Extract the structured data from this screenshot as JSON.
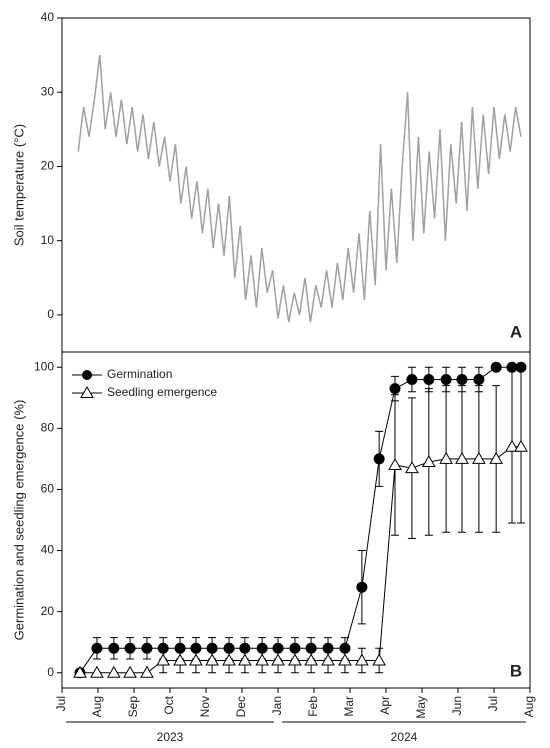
{
  "chart_data": [
    {
      "type": "line",
      "ylabel": "Soil temperature (°C)",
      "panel_label": "A",
      "color": "#a0a0a0",
      "xlim": [
        0,
        13
      ],
      "ylim": [
        -5,
        40
      ],
      "yticks": [
        0,
        10,
        20,
        30,
        40
      ],
      "x": [
        0.45,
        0.6,
        0.75,
        0.9,
        1.05,
        1.2,
        1.35,
        1.5,
        1.65,
        1.8,
        1.95,
        2.1,
        2.25,
        2.4,
        2.55,
        2.7,
        2.85,
        3.0,
        3.15,
        3.3,
        3.45,
        3.6,
        3.75,
        3.9,
        4.05,
        4.2,
        4.35,
        4.5,
        4.65,
        4.8,
        4.95,
        5.1,
        5.25,
        5.4,
        5.55,
        5.7,
        5.85,
        6.0,
        6.15,
        6.3,
        6.45,
        6.6,
        6.75,
        6.9,
        7.05,
        7.2,
        7.35,
        7.5,
        7.65,
        7.8,
        7.95,
        8.1,
        8.25,
        8.4,
        8.55,
        8.7,
        8.85,
        9.0,
        9.15,
        9.3,
        9.45,
        9.6,
        9.75,
        9.9,
        10.05,
        10.2,
        10.35,
        10.5,
        10.65,
        10.8,
        10.95,
        11.1,
        11.25,
        11.4,
        11.55,
        11.7,
        11.85,
        12.0,
        12.15,
        12.3,
        12.45,
        12.6,
        12.75
      ],
      "values": [
        22,
        28,
        24,
        29,
        35,
        25,
        30,
        24,
        29,
        23,
        28,
        22,
        27,
        21,
        26,
        20,
        24,
        18,
        23,
        15,
        20,
        13,
        18,
        11,
        17,
        9,
        15,
        8,
        16,
        5,
        12,
        2,
        8,
        1,
        9,
        3,
        6,
        -0.5,
        4,
        -1,
        3,
        0,
        5,
        -1,
        4,
        1,
        6,
        1,
        7,
        2,
        9,
        3,
        11,
        2,
        14,
        4,
        23,
        6,
        17,
        7,
        20,
        30,
        10,
        24,
        11,
        22,
        13,
        25,
        10,
        23,
        15,
        26,
        14,
        28,
        17,
        27,
        19,
        28,
        21,
        27,
        22,
        28,
        24
      ]
    },
    {
      "type": "errorbar",
      "ylabel": "Germination and seedling emergence (%)",
      "panel_label": "B",
      "legend": "upper left",
      "xlim": [
        0,
        13
      ],
      "ylim": [
        -5,
        105
      ],
      "yticks": [
        0,
        20,
        40,
        60,
        80,
        100
      ],
      "xticks": [
        {
          "value": 0,
          "label": "Jul"
        },
        {
          "value": 1,
          "label": "Aug"
        },
        {
          "value": 2,
          "label": "Sep"
        },
        {
          "value": 3,
          "label": "Oct"
        },
        {
          "value": 4,
          "label": "Nov"
        },
        {
          "value": 5,
          "label": "Dec"
        },
        {
          "value": 6,
          "label": "Jan"
        },
        {
          "value": 7,
          "label": "Feb"
        },
        {
          "value": 8,
          "label": "Mar"
        },
        {
          "value": 9,
          "label": "Apr"
        },
        {
          "value": 10,
          "label": "May"
        },
        {
          "value": 11,
          "label": "Jun"
        },
        {
          "value": 12,
          "label": "Jul"
        },
        {
          "value": 13,
          "label": "Aug"
        }
      ],
      "year_labels": [
        {
          "label": "2023",
          "span": [
            0,
            6
          ]
        },
        {
          "label": "2024",
          "span": [
            6,
            13
          ]
        }
      ],
      "x": [
        0.5,
        0.97,
        1.44,
        1.89,
        2.36,
        2.81,
        3.28,
        3.72,
        4.17,
        4.64,
        5.08,
        5.56,
        6.0,
        6.47,
        6.92,
        7.39,
        7.86,
        8.33,
        8.81,
        9.25,
        9.72,
        10.19,
        10.67,
        11.11,
        11.58,
        12.06,
        12.5,
        12.75
      ],
      "series": [
        {
          "name": "Germination",
          "marker": "circle",
          "color": "#000000",
          "values": [
            0,
            8,
            8,
            8,
            8,
            8,
            8,
            8,
            8,
            8,
            8,
            8,
            8,
            8,
            8,
            8,
            8,
            28,
            70,
            93,
            96,
            96,
            96,
            96,
            96,
            100,
            100,
            100
          ],
          "errors": [
            0,
            3.5,
            3.5,
            3.5,
            3.5,
            3.5,
            3.5,
            3.5,
            3.5,
            3.5,
            3.5,
            3.5,
            3.5,
            3.5,
            3.5,
            3.5,
            3.5,
            12,
            9,
            4,
            4,
            4,
            4,
            4,
            4,
            0,
            0,
            0
          ]
        },
        {
          "name": "Seedling emergence",
          "marker": "triangle",
          "color": "#000000",
          "values": [
            0,
            0,
            0,
            0,
            0,
            4,
            4,
            4,
            4,
            4,
            4,
            4,
            4,
            4,
            4,
            4,
            4,
            4,
            4,
            68,
            67,
            69,
            70,
            70,
            70,
            70,
            74,
            74
          ],
          "errors": [
            0,
            0,
            0,
            0,
            0,
            4,
            4,
            4,
            4,
            4,
            4,
            4,
            4,
            4,
            4,
            4,
            4,
            4,
            4,
            23,
            23,
            24,
            24,
            24,
            24,
            24,
            25,
            25
          ]
        }
      ]
    }
  ]
}
